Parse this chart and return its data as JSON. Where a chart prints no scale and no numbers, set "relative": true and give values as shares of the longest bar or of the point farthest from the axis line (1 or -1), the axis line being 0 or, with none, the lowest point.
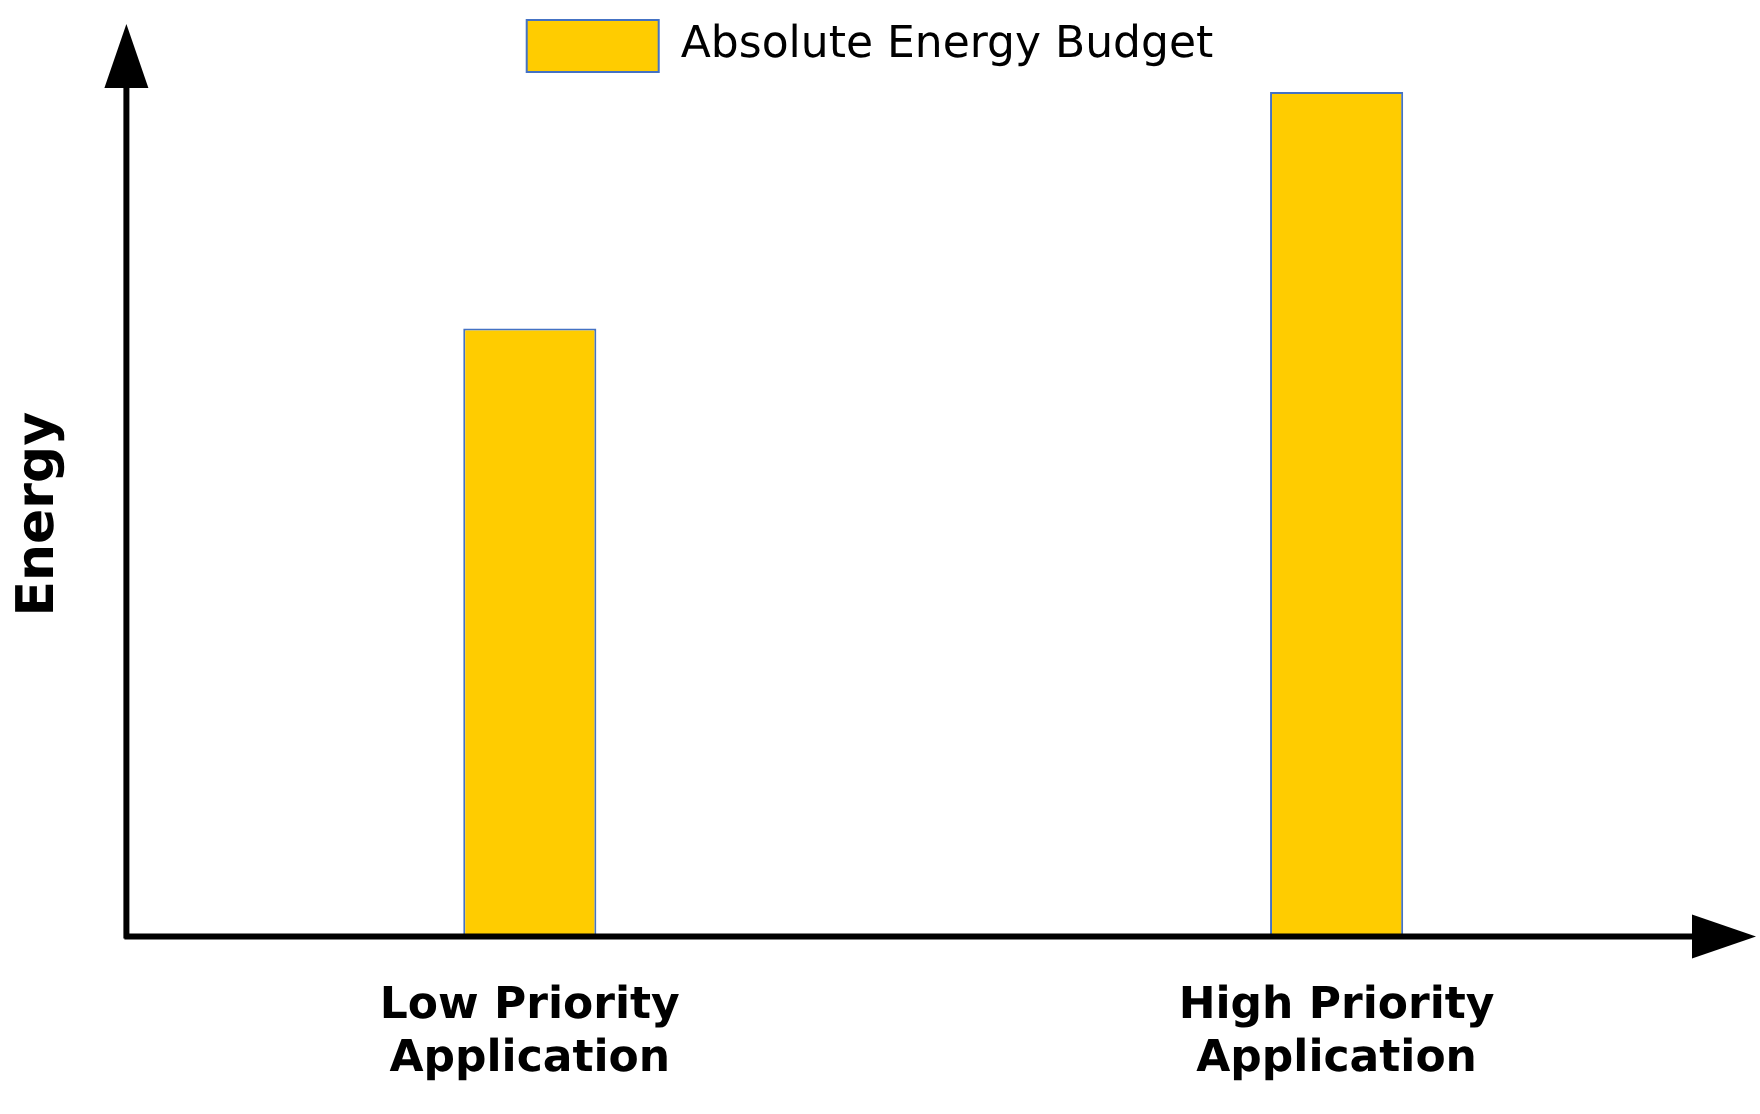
{
  "chart_data": {
    "type": "bar",
    "relative": true,
    "ylabel": "Energy",
    "legend": "top",
    "categories": [
      "Low Priority Application",
      "High Priority Application"
    ],
    "series": [
      {
        "name": "Absolute Energy Budget",
        "color": "#ffcc00",
        "values": [
          0.72,
          1
        ]
      }
    ]
  }
}
